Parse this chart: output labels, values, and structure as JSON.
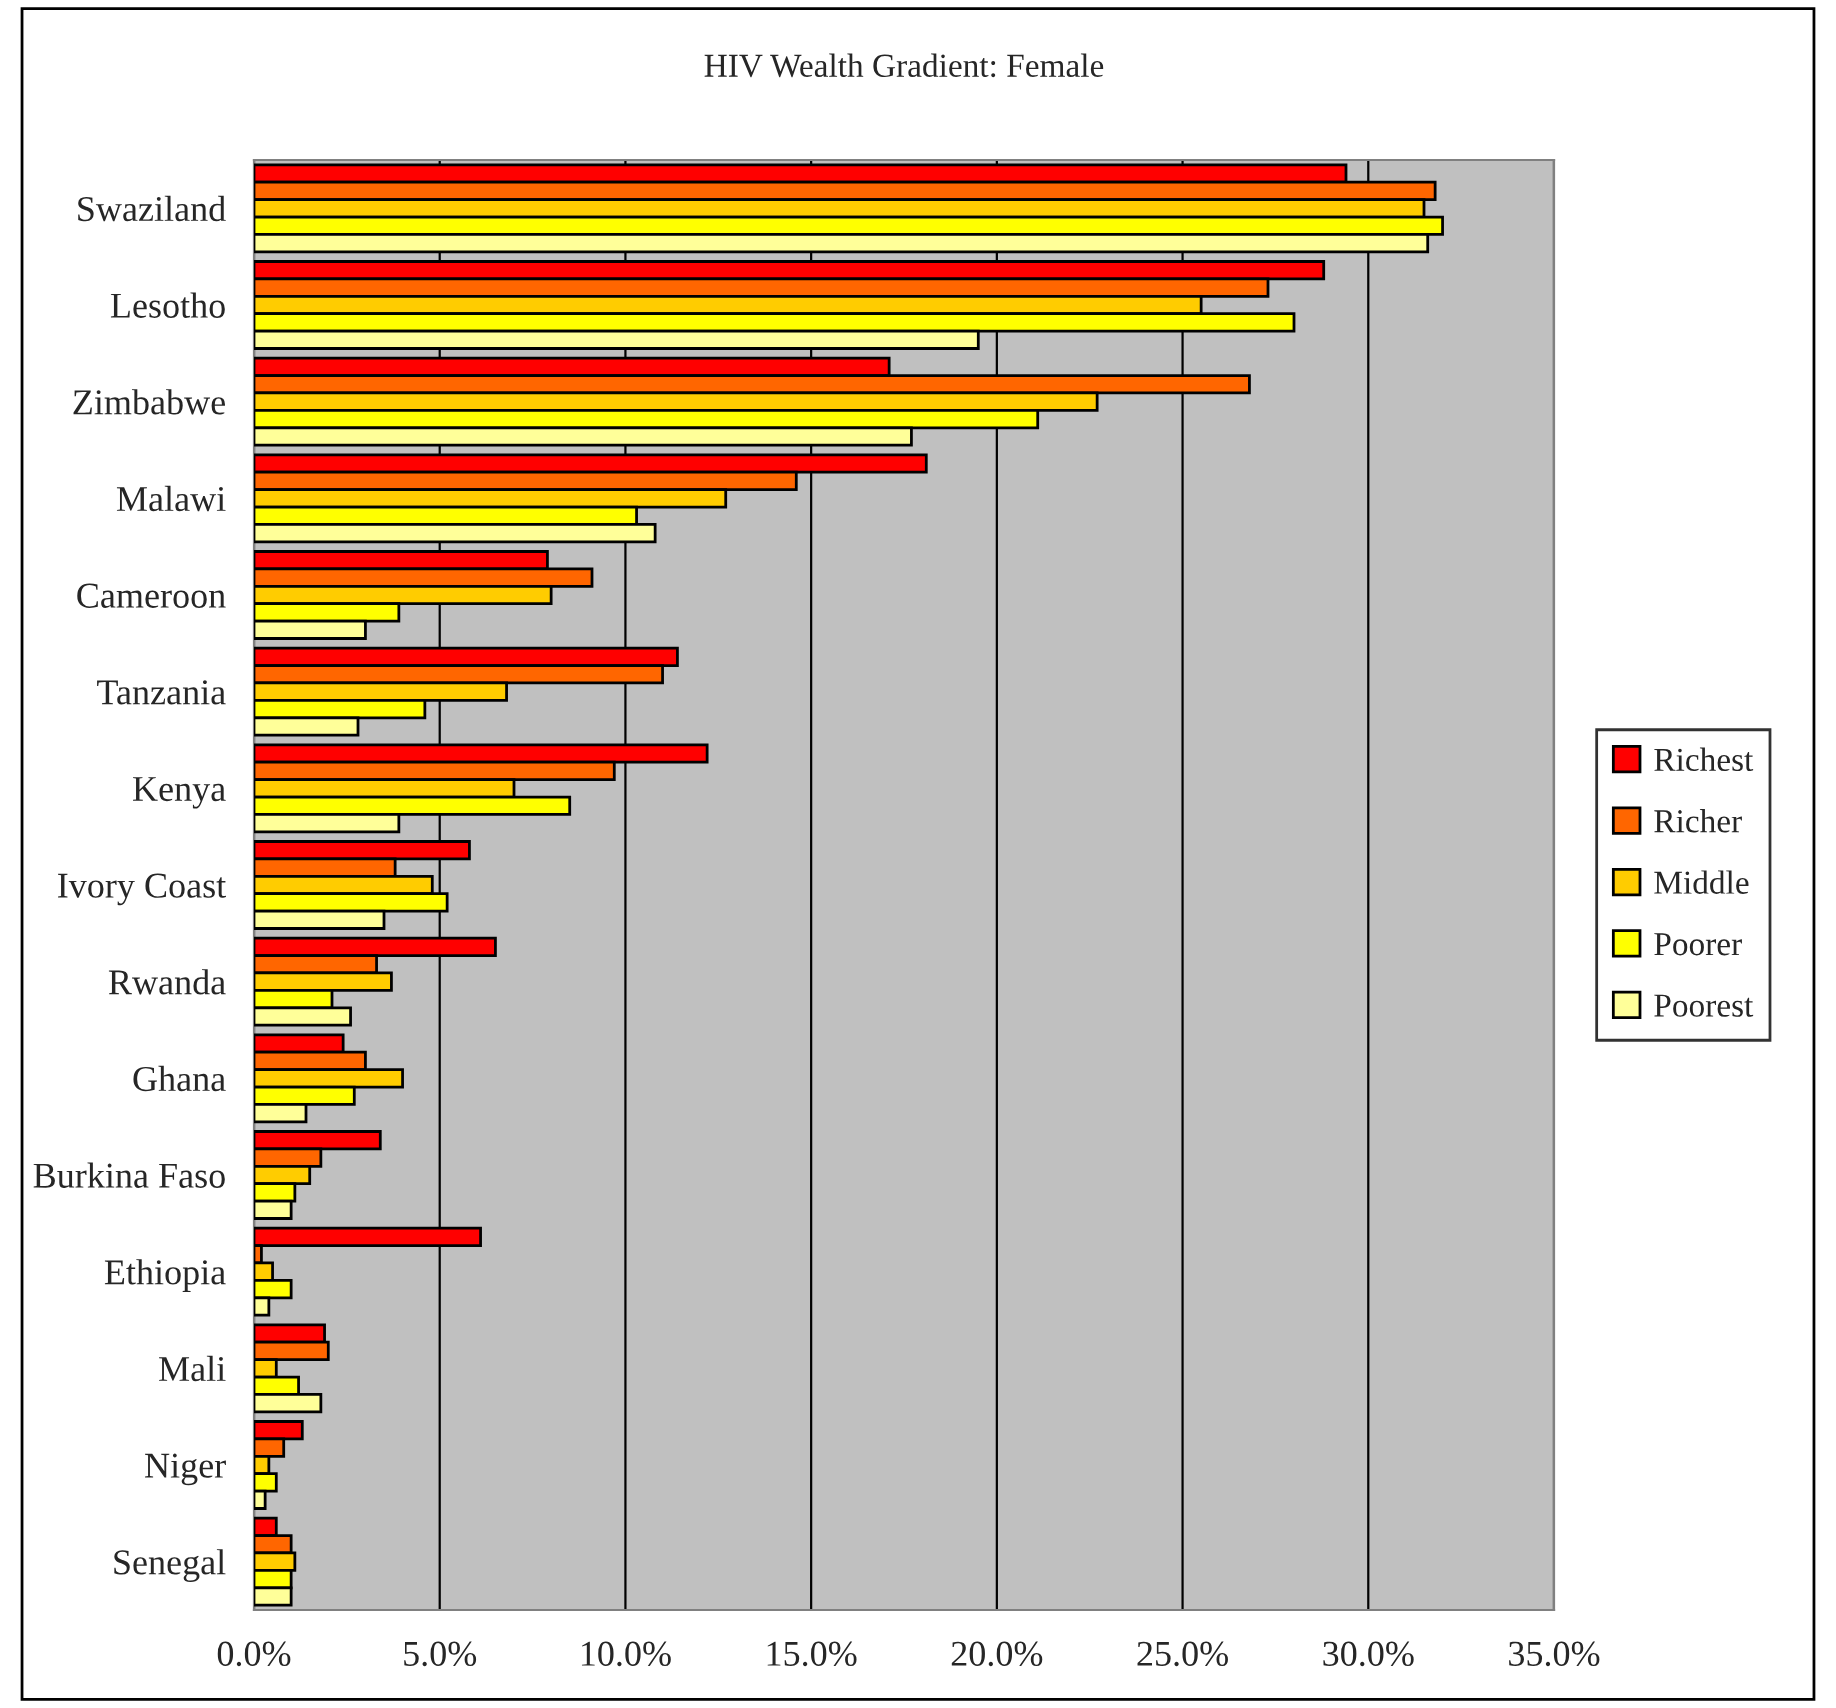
{
  "chart_data": {
    "type": "bar",
    "orientation": "horizontal",
    "title": "HIV Wealth Gradient: Female",
    "categories": [
      "Swaziland",
      "Lesotho",
      "Zimbabwe",
      "Malawi",
      "Cameroon",
      "Tanzania",
      "Kenya",
      "Ivory Coast",
      "Rwanda",
      "Ghana",
      "Burkina Faso",
      "Ethiopia",
      "Mali",
      "Niger",
      "Senegal"
    ],
    "series": [
      {
        "name": "Richest",
        "color": "#ff0000",
        "values": [
          29.4,
          28.8,
          17.1,
          18.1,
          7.9,
          11.4,
          12.2,
          5.8,
          6.5,
          2.4,
          3.4,
          6.1,
          1.9,
          1.3,
          0.6
        ]
      },
      {
        "name": "Richer",
        "color": "#ff6600",
        "values": [
          31.8,
          27.3,
          26.8,
          14.6,
          9.1,
          11.0,
          9.7,
          3.8,
          3.3,
          3.0,
          1.8,
          0.2,
          2.0,
          0.8,
          1.0
        ]
      },
      {
        "name": "Middle",
        "color": "#ffcc00",
        "values": [
          31.5,
          25.5,
          22.7,
          12.7,
          8.0,
          6.8,
          7.0,
          4.8,
          3.7,
          4.0,
          1.5,
          0.5,
          0.6,
          0.4,
          1.1
        ]
      },
      {
        "name": "Poorer",
        "color": "#ffff00",
        "values": [
          32.0,
          28.0,
          21.1,
          10.3,
          3.9,
          4.6,
          8.5,
          5.2,
          2.1,
          2.7,
          1.1,
          1.0,
          1.2,
          0.6,
          1.0
        ]
      },
      {
        "name": "Poorest",
        "color": "#ffff99",
        "values": [
          31.6,
          19.5,
          17.7,
          10.8,
          3.0,
          2.8,
          3.9,
          3.5,
          2.6,
          1.4,
          1.0,
          0.4,
          1.8,
          0.3,
          1.0
        ]
      }
    ],
    "xlim": [
      0,
      35
    ],
    "xticks": [
      {
        "value": 0,
        "label": "0.0%"
      },
      {
        "value": 5,
        "label": "5.0%"
      },
      {
        "value": 10,
        "label": "10.0%"
      },
      {
        "value": 15,
        "label": "15.0%"
      },
      {
        "value": 20,
        "label": "20.0%"
      },
      {
        "value": 25,
        "label": "25.0%"
      },
      {
        "value": 30,
        "label": "30.0%"
      },
      {
        "value": 35,
        "label": "35.0%"
      }
    ],
    "grid": "x",
    "legend": "right"
  }
}
